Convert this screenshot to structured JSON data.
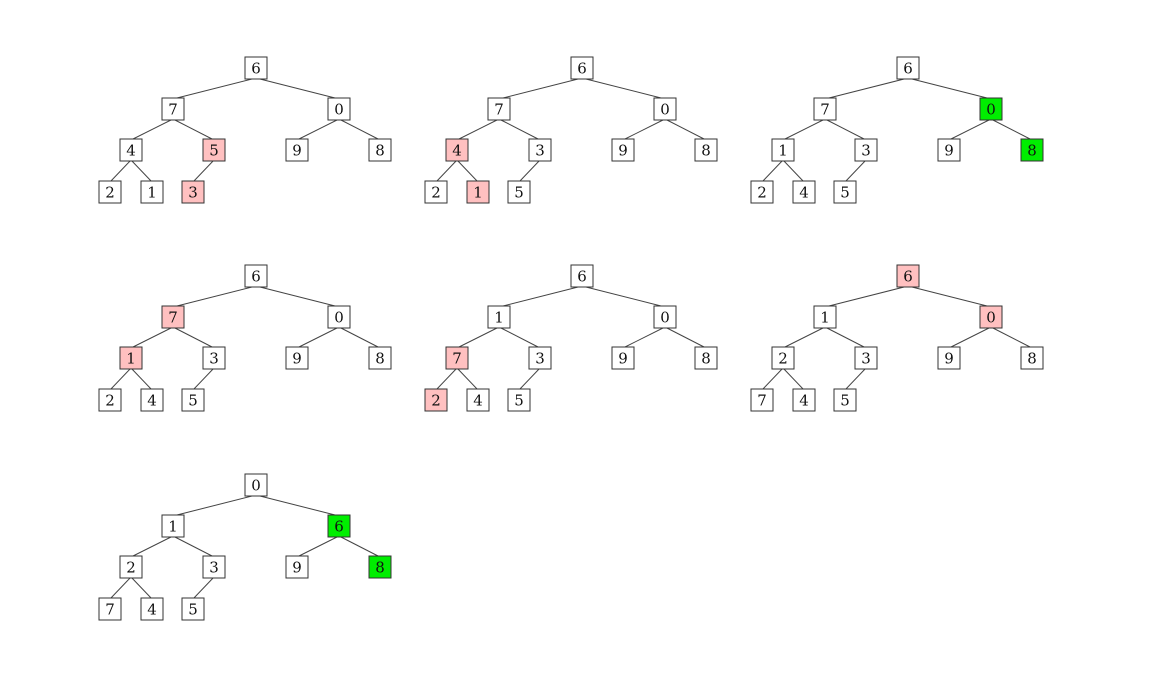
{
  "colors": {
    "normal": "#ffffff",
    "compared": "#ffc0c0",
    "settled": "#00ee00",
    "edge": "#444444",
    "border": "#333333"
  },
  "trees": [
    {
      "nodes": [
        "6",
        "7",
        "0",
        "4",
        "5",
        "9",
        "8",
        "2",
        "1",
        "3"
      ],
      "state": [
        "normal",
        "normal",
        "normal",
        "normal",
        "compared",
        "normal",
        "normal",
        "normal",
        "normal",
        "compared"
      ]
    },
    {
      "nodes": [
        "6",
        "7",
        "0",
        "4",
        "3",
        "9",
        "8",
        "2",
        "1",
        "5"
      ],
      "state": [
        "normal",
        "normal",
        "normal",
        "compared",
        "normal",
        "normal",
        "normal",
        "normal",
        "compared",
        "normal"
      ]
    },
    {
      "nodes": [
        "6",
        "7",
        "0",
        "1",
        "3",
        "9",
        "8",
        "2",
        "4",
        "5"
      ],
      "state": [
        "normal",
        "normal",
        "settled",
        "normal",
        "normal",
        "normal",
        "settled",
        "normal",
        "normal",
        "normal"
      ]
    },
    {
      "nodes": [
        "6",
        "7",
        "0",
        "1",
        "3",
        "9",
        "8",
        "2",
        "4",
        "5"
      ],
      "state": [
        "normal",
        "compared",
        "normal",
        "compared",
        "normal",
        "normal",
        "normal",
        "normal",
        "normal",
        "normal"
      ]
    },
    {
      "nodes": [
        "6",
        "1",
        "0",
        "7",
        "3",
        "9",
        "8",
        "2",
        "4",
        "5"
      ],
      "state": [
        "normal",
        "normal",
        "normal",
        "compared",
        "normal",
        "normal",
        "normal",
        "compared",
        "normal",
        "normal"
      ]
    },
    {
      "nodes": [
        "6",
        "1",
        "0",
        "2",
        "3",
        "9",
        "8",
        "7",
        "4",
        "5"
      ],
      "state": [
        "compared",
        "normal",
        "compared",
        "normal",
        "normal",
        "normal",
        "normal",
        "normal",
        "normal",
        "normal"
      ]
    },
    {
      "nodes": [
        "0",
        "1",
        "6",
        "2",
        "3",
        "9",
        "8",
        "7",
        "4",
        "5"
      ],
      "state": [
        "normal",
        "normal",
        "settled",
        "normal",
        "normal",
        "normal",
        "settled",
        "normal",
        "normal",
        "normal"
      ]
    }
  ]
}
